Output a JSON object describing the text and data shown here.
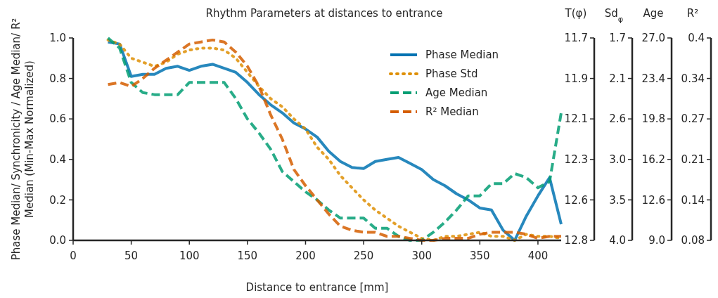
{
  "chart_data": {
    "type": "line",
    "title": "Rhythm Parameters at distances to entrance",
    "xlabel": "Distance to entrance [mm]",
    "ylabel": "Phase Median/ Synchronicity / Age Median/ R² Median (Min-Max Normalized)",
    "x": [
      30,
      40,
      50,
      60,
      70,
      80,
      90,
      100,
      110,
      120,
      130,
      140,
      150,
      160,
      170,
      180,
      190,
      200,
      210,
      220,
      230,
      240,
      250,
      260,
      270,
      280,
      290,
      300,
      310,
      320,
      330,
      340,
      350,
      360,
      370,
      380,
      390,
      400,
      410,
      420
    ],
    "series": [
      {
        "name": "Phase Median",
        "color": "#0173b2",
        "line_style": "solid",
        "values": [
          0.98,
          0.97,
          0.81,
          0.82,
          0.82,
          0.85,
          0.86,
          0.84,
          0.86,
          0.87,
          0.85,
          0.83,
          0.78,
          0.72,
          0.67,
          0.63,
          0.58,
          0.55,
          0.51,
          0.44,
          0.39,
          0.36,
          0.355,
          0.39,
          0.4,
          0.41,
          0.38,
          0.35,
          0.3,
          0.27,
          0.23,
          0.2,
          0.16,
          0.15,
          0.05,
          0.0,
          0.12,
          0.22,
          0.31,
          0.08
        ]
      },
      {
        "name": "Phase Std",
        "color": "#de8f05",
        "line_style": "dotted",
        "values": [
          0.99,
          0.97,
          0.9,
          0.88,
          0.86,
          0.88,
          0.92,
          0.94,
          0.95,
          0.95,
          0.94,
          0.9,
          0.83,
          0.76,
          0.7,
          0.66,
          0.6,
          0.55,
          0.46,
          0.4,
          0.32,
          0.26,
          0.2,
          0.15,
          0.11,
          0.07,
          0.04,
          0.01,
          0.0,
          0.02,
          0.02,
          0.03,
          0.04,
          0.02,
          0.02,
          0.0,
          0.03,
          0.02,
          0.02,
          0.01
        ]
      },
      {
        "name": "Age Median",
        "color": "#029e73",
        "line_style": "dashed",
        "values": [
          1.0,
          0.95,
          0.78,
          0.73,
          0.72,
          0.72,
          0.72,
          0.78,
          0.78,
          0.78,
          0.78,
          0.7,
          0.6,
          0.53,
          0.45,
          0.34,
          0.29,
          0.24,
          0.2,
          0.15,
          0.11,
          0.11,
          0.11,
          0.06,
          0.06,
          0.02,
          0.0,
          0.0,
          0.04,
          0.09,
          0.15,
          0.22,
          0.22,
          0.28,
          0.28,
          0.33,
          0.31,
          0.26,
          0.29,
          0.63
        ]
      },
      {
        "name": "R² Median",
        "color": "#d55e00",
        "line_style": "dashed",
        "values": [
          0.77,
          0.78,
          0.76,
          0.8,
          0.85,
          0.89,
          0.93,
          0.97,
          0.98,
          0.99,
          0.98,
          0.93,
          0.86,
          0.76,
          0.62,
          0.5,
          0.35,
          0.27,
          0.2,
          0.13,
          0.07,
          0.05,
          0.04,
          0.04,
          0.02,
          0.02,
          0.01,
          0.0,
          0.0,
          0.01,
          0.01,
          0.01,
          0.03,
          0.04,
          0.04,
          0.04,
          0.03,
          0.01,
          0.02,
          0.02
        ]
      }
    ],
    "xlim": [
      0,
      420
    ],
    "xticks": [
      0,
      50,
      100,
      150,
      200,
      250,
      300,
      350,
      400
    ],
    "ylim": [
      0,
      1
    ],
    "yticks": [
      {
        "value": 0,
        "label": "0.0"
      },
      {
        "value": 0.2,
        "label": "0.2"
      },
      {
        "value": 0.4,
        "label": "0.4"
      },
      {
        "value": 0.6,
        "label": "0.6"
      },
      {
        "value": 0.8,
        "label": "0.8"
      },
      {
        "value": 1,
        "label": "1.0"
      }
    ],
    "annotations": [
      "T(φ)",
      "11.7",
      "11.9",
      "12.1",
      "12.3",
      "12.6",
      "12.8",
      "Sd$_{φ}$",
      "1.7",
      "2.1",
      "2.6",
      "3.0",
      "3.5",
      "4.0",
      "Age",
      "27.0",
      "23.4",
      "19.8",
      "16.2",
      "12.6",
      "9.0",
      "R²",
      "0.4",
      "0.34",
      "0.27",
      "0.21",
      "0.14",
      "0.08"
    ],
    "grid": false,
    "legend": "top right"
  }
}
